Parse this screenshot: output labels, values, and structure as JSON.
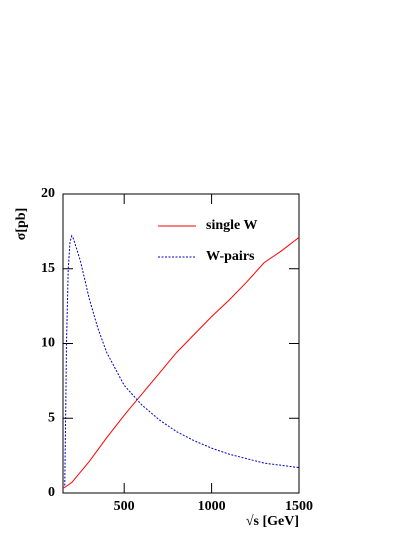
{
  "chart_data": {
    "type": "line",
    "x_label": "√s [GeV]",
    "y_label": "σ[pb]",
    "xlim": [
      150,
      1500
    ],
    "ylim": [
      0,
      20
    ],
    "xticks": [
      500,
      1000,
      1500
    ],
    "yticks": [
      0,
      5,
      10,
      15,
      20
    ],
    "legend": "upper right",
    "series": [
      {
        "name": "single W",
        "color": "#ff0000",
        "dash": false,
        "x": [
          150,
          200,
          300,
          400,
          500,
          600,
          700,
          800,
          900,
          1000,
          1100,
          1200,
          1300,
          1400,
          1500
        ],
        "values": [
          0.3,
          0.7,
          2.1,
          3.7,
          5.2,
          6.6,
          8.0,
          9.4,
          10.6,
          11.8,
          12.9,
          14.1,
          15.4,
          16.2,
          17.1
        ]
      },
      {
        "name": "W-pairs",
        "color": "#0000cc",
        "dash": true,
        "x": [
          160,
          165,
          170,
          180,
          190,
          200,
          210,
          250,
          300,
          350,
          400,
          500,
          600,
          700,
          800,
          900,
          1000,
          1100,
          1200,
          1300,
          1400,
          1500
        ],
        "values": [
          0.5,
          5,
          10,
          15,
          16.8,
          17.2,
          17.0,
          15.5,
          13.0,
          11.0,
          9.4,
          7.2,
          5.9,
          4.9,
          4.1,
          3.5,
          3.0,
          2.6,
          2.3,
          2.0,
          1.85,
          1.7
        ]
      }
    ]
  }
}
